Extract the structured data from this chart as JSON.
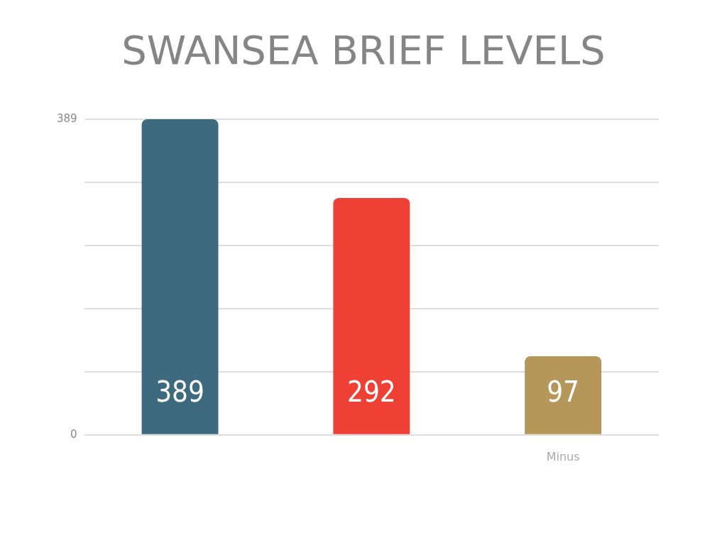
{
  "chart_data": {
    "type": "bar",
    "title": "SWANSEA BRIEF LEVELS",
    "categories": [
      null,
      null,
      "Minus"
    ],
    "values": [
      389,
      292,
      97
    ],
    "colors": [
      "#3d6a7f",
      "#ef4035",
      "#b59859"
    ],
    "ylim": [
      0,
      389
    ],
    "yticks": [
      0,
      {
        "value": 77.8,
        "label": null
      },
      {
        "value": 155.6,
        "label": null
      },
      {
        "value": 233.4,
        "label": null
      },
      {
        "value": 311.2,
        "label": null
      },
      389
    ],
    "grid": "y",
    "data_labels": true,
    "legend": false
  }
}
